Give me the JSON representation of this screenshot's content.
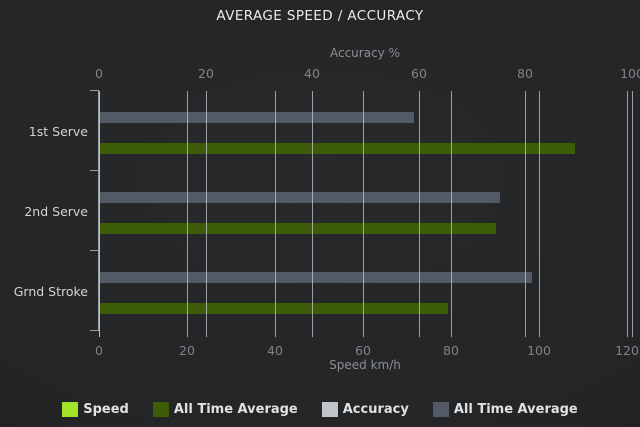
{
  "title": "AVERAGE SPEED / ACCURACY",
  "chart_data": {
    "type": "bar",
    "orientation": "horizontal",
    "title": "AVERAGE SPEED / ACCURACY",
    "categories": [
      "1st Serve",
      "2nd Serve",
      "Grnd Stroke"
    ],
    "axes": {
      "top": {
        "label": "Accuracy %",
        "min": 0,
        "max": 100,
        "ticks": [
          0,
          20,
          40,
          60,
          80,
          100
        ]
      },
      "bottom": {
        "label": "Speed km/h",
        "min": 0,
        "max": 120,
        "ticks": [
          0,
          20,
          40,
          60,
          80,
          100,
          120
        ]
      }
    },
    "series": [
      {
        "name": "Speed",
        "axis": "bottom",
        "unit": "km/h",
        "color": "#a3e32a",
        "values": [
          null,
          null,
          null
        ]
      },
      {
        "name": "All Time Average",
        "axis": "bottom",
        "unit": "km/h",
        "color": "#3d5c08",
        "values": [
          108,
          90,
          79
        ]
      },
      {
        "name": "Accuracy",
        "axis": "top",
        "unit": "%",
        "color": "#c0c5ca",
        "values": [
          null,
          null,
          null
        ]
      },
      {
        "name": "All Time Average",
        "axis": "top",
        "unit": "%",
        "color": "#525a66",
        "values": [
          59,
          75,
          81
        ]
      }
    ],
    "legend_position": "bottom",
    "grid": true,
    "background": "#232527",
    "gridline_color": "#caccd0",
    "text_color": "#d2d4d6"
  }
}
